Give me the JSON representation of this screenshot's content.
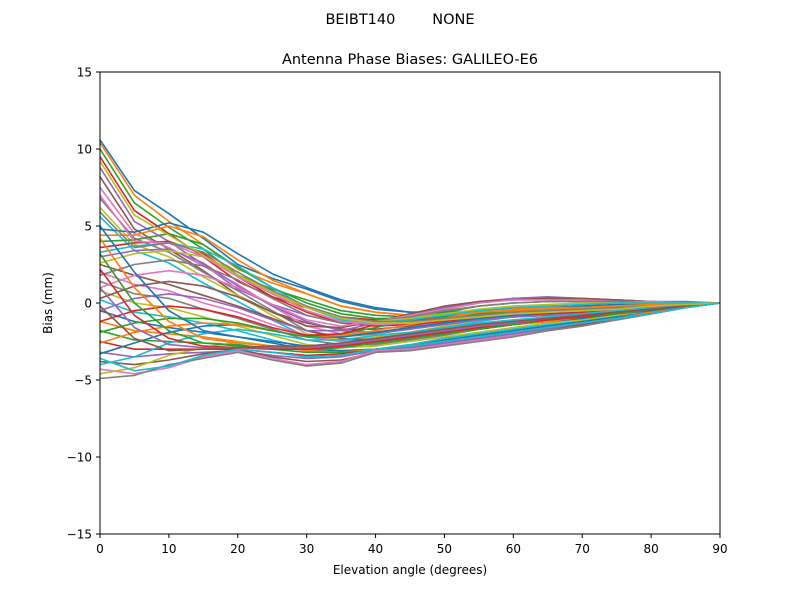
{
  "figure": {
    "suptitle": "BEIBT140        NONE"
  },
  "chart_data": {
    "type": "line",
    "title": "Antenna Phase Biases: GALILEO-E6",
    "xlabel": "Elevation angle (degrees)",
    "ylabel": "Bias (mm)",
    "xlim": [
      0,
      90
    ],
    "ylim": [
      -15,
      15
    ],
    "xticks": [
      "0",
      "10",
      "20",
      "30",
      "40",
      "50",
      "60",
      "70",
      "80",
      "90"
    ],
    "yticks": [
      "15",
      "10",
      "5",
      "0",
      "−5",
      "−10",
      "−15"
    ],
    "grid": false,
    "legend": "none",
    "x": [
      0,
      5,
      10,
      15,
      20,
      25,
      30,
      35,
      40,
      45,
      50,
      55,
      60,
      65,
      70,
      75,
      80,
      85,
      90
    ],
    "colors": [
      "#1f77b4",
      "#ff7f0e",
      "#2ca02c",
      "#d62728",
      "#9467bd",
      "#8c564b",
      "#e377c2",
      "#7f7f7f",
      "#bcbd22",
      "#17becf"
    ],
    "series": [
      {
        "values": [
          10.6,
          7.3,
          5.8,
          4.2,
          2.5,
          1.6,
          0.9,
          0.1,
          -0.4,
          -0.6,
          -0.6,
          -0.5,
          -0.4,
          -0.3,
          -0.2,
          -0.1,
          0.0,
          0.0,
          0.0
        ]
      },
      {
        "values": [
          10.4,
          7.0,
          5.3,
          3.8,
          2.2,
          1.3,
          0.6,
          -0.2,
          -0.6,
          -0.8,
          -0.8,
          -0.6,
          -0.5,
          -0.4,
          -0.3,
          -0.2,
          -0.1,
          0.0,
          0.0
        ]
      },
      {
        "values": [
          10.0,
          6.5,
          4.9,
          3.5,
          1.8,
          0.9,
          0.2,
          -0.5,
          -0.8,
          -0.9,
          -0.9,
          -0.7,
          -0.6,
          -0.5,
          -0.4,
          -0.3,
          -0.2,
          -0.1,
          0.0
        ]
      },
      {
        "values": [
          9.5,
          6.0,
          4.5,
          3.0,
          1.4,
          0.4,
          -0.3,
          -0.9,
          -1.1,
          -1.1,
          -1.0,
          -0.8,
          -0.7,
          -0.6,
          -0.5,
          -0.4,
          -0.3,
          -0.1,
          0.0
        ]
      },
      {
        "values": [
          8.8,
          5.3,
          4.0,
          2.5,
          0.9,
          -0.1,
          -0.8,
          -1.3,
          -1.4,
          -1.3,
          -1.1,
          -0.9,
          -0.8,
          -0.7,
          -0.6,
          -0.5,
          -0.3,
          -0.2,
          0.0
        ]
      },
      {
        "values": [
          8.2,
          4.8,
          3.5,
          2.1,
          0.5,
          -0.6,
          -1.3,
          -1.7,
          -1.7,
          -1.5,
          -1.2,
          -1.0,
          -0.9,
          -0.8,
          -0.7,
          -0.5,
          -0.4,
          -0.2,
          0.0
        ]
      },
      {
        "values": [
          7.5,
          4.5,
          3.6,
          2.4,
          1.2,
          -0.2,
          -1.5,
          -2.0,
          -1.9,
          -1.6,
          -1.2,
          -0.9,
          -0.7,
          -0.6,
          -0.5,
          -0.4,
          -0.3,
          -0.1,
          0.0
        ]
      },
      {
        "values": [
          6.8,
          4.2,
          3.3,
          2.0,
          0.8,
          -0.5,
          -1.8,
          -2.2,
          -2.0,
          -1.7,
          -1.3,
          -0.9,
          -0.7,
          -0.6,
          -0.5,
          -0.4,
          -0.3,
          -0.1,
          0.0
        ]
      },
      {
        "values": [
          6.2,
          3.8,
          3.0,
          1.7,
          0.5,
          -0.8,
          -2.0,
          -2.4,
          -2.2,
          -1.9,
          -1.5,
          -1.1,
          -0.8,
          -0.7,
          -0.6,
          -0.4,
          -0.3,
          -0.1,
          0.0
        ]
      },
      {
        "values": [
          5.6,
          3.4,
          2.6,
          1.3,
          0.1,
          -1.1,
          -2.2,
          -2.5,
          -2.3,
          -2.0,
          -1.6,
          -1.2,
          -0.9,
          -0.8,
          -0.7,
          -0.5,
          -0.3,
          -0.1,
          0.0
        ]
      },
      {
        "values": [
          4.8,
          4.6,
          5.2,
          4.6,
          3.2,
          1.9,
          1.0,
          0.2,
          -0.3,
          -0.6,
          -0.6,
          -0.5,
          -0.4,
          -0.3,
          -0.2,
          -0.1,
          0.0,
          0.0,
          0.0
        ]
      },
      {
        "values": [
          4.4,
          4.4,
          5.0,
          4.3,
          2.8,
          1.5,
          0.6,
          -0.2,
          -0.6,
          -0.8,
          -0.7,
          -0.6,
          -0.5,
          -0.4,
          -0.3,
          -0.2,
          -0.1,
          0.0,
          0.0
        ]
      },
      {
        "values": [
          4.0,
          4.1,
          4.5,
          3.8,
          2.3,
          1.0,
          0.0,
          -0.7,
          -1.0,
          -1.0,
          -0.9,
          -0.7,
          -0.6,
          -0.5,
          -0.4,
          -0.3,
          -0.2,
          -0.1,
          0.0
        ]
      },
      {
        "values": [
          3.6,
          3.9,
          4.0,
          3.2,
          1.7,
          0.4,
          -0.6,
          -1.3,
          -1.5,
          -1.4,
          -1.2,
          -0.9,
          -0.8,
          -0.7,
          -0.6,
          -0.4,
          -0.3,
          -0.2,
          0.0
        ]
      },
      {
        "values": [
          3.0,
          3.4,
          3.5,
          2.6,
          1.1,
          -0.2,
          -1.2,
          -1.8,
          -1.9,
          -1.7,
          -1.4,
          -1.1,
          -0.9,
          -0.8,
          -0.7,
          -0.5,
          -0.4,
          -0.2,
          0.0
        ]
      },
      {
        "values": [
          2.5,
          1.8,
          1.2,
          0.5,
          -0.2,
          -1.0,
          -1.8,
          -2.3,
          -2.4,
          -2.1,
          -1.8,
          -1.4,
          -1.2,
          -1.0,
          -0.8,
          -0.6,
          -0.4,
          -0.2,
          0.0
        ]
      },
      {
        "values": [
          2.0,
          1.2,
          0.8,
          0.0,
          -0.6,
          -1.4,
          -2.1,
          -2.5,
          -2.5,
          -2.3,
          -1.9,
          -1.6,
          -1.3,
          -1.1,
          -0.9,
          -0.7,
          -0.5,
          -0.2,
          0.0
        ]
      },
      {
        "values": [
          1.4,
          0.6,
          0.3,
          -0.4,
          -1.0,
          -1.7,
          -2.4,
          -2.7,
          -2.7,
          -2.4,
          -2.1,
          -1.7,
          -1.4,
          -1.2,
          -1.0,
          -0.7,
          -0.5,
          -0.3,
          0.0
        ]
      },
      {
        "values": [
          0.8,
          0.0,
          -0.3,
          -0.9,
          -1.5,
          -2.1,
          -2.7,
          -2.9,
          -2.8,
          -2.5,
          -2.2,
          -1.9,
          -1.6,
          -1.3,
          -1.1,
          -0.8,
          -0.5,
          -0.3,
          0.0
        ]
      },
      {
        "values": [
          0.2,
          -0.6,
          -0.9,
          -1.3,
          -1.8,
          -2.4,
          -2.9,
          -3.1,
          -3.0,
          -2.7,
          -2.3,
          -2.0,
          -1.7,
          -1.4,
          -1.2,
          -0.9,
          -0.6,
          -0.3,
          0.0
        ]
      },
      {
        "values": [
          -0.5,
          -1.2,
          -1.6,
          -1.9,
          -2.2,
          -2.6,
          -3.0,
          -3.1,
          -3.0,
          -2.8,
          -2.4,
          -2.1,
          -1.8,
          -1.5,
          -1.2,
          -0.9,
          -0.6,
          -0.3,
          0.0
        ]
      },
      {
        "values": [
          -1.2,
          -1.8,
          -2.0,
          -2.2,
          -2.5,
          -2.8,
          -3.1,
          -3.2,
          -3.0,
          -2.8,
          -2.5,
          -2.2,
          -1.9,
          -1.6,
          -1.3,
          -1.0,
          -0.6,
          -0.3,
          0.0
        ]
      },
      {
        "values": [
          -1.8,
          -2.4,
          -2.5,
          -2.6,
          -2.7,
          -3.0,
          -3.2,
          -3.2,
          -3.1,
          -2.9,
          -2.6,
          -2.3,
          -2.0,
          -1.7,
          -1.4,
          -1.0,
          -0.7,
          -0.3,
          0.0
        ]
      },
      {
        "values": [
          -2.5,
          -3.0,
          -3.0,
          -3.0,
          -3.0,
          -3.2,
          -3.4,
          -3.3,
          -3.1,
          -2.9,
          -2.6,
          -2.3,
          -2.0,
          -1.7,
          -1.4,
          -1.0,
          -0.7,
          -0.3,
          0.0
        ]
      },
      {
        "values": [
          -3.2,
          -3.5,
          -3.3,
          -3.2,
          -3.1,
          -3.4,
          -3.6,
          -3.5,
          -3.1,
          -2.9,
          -2.6,
          -2.3,
          -2.0,
          -1.7,
          -1.4,
          -1.0,
          -0.7,
          -0.3,
          0.0
        ]
      },
      {
        "values": [
          -3.8,
          -4.0,
          -3.7,
          -3.3,
          -3.0,
          -3.5,
          -3.8,
          -3.7,
          -3.2,
          -3.0,
          -2.7,
          -2.4,
          -2.1,
          -1.8,
          -1.4,
          -1.1,
          -0.7,
          -0.3,
          0.0
        ]
      },
      {
        "values": [
          -4.3,
          -4.6,
          -4.2,
          -3.5,
          -3.1,
          -3.6,
          -4.0,
          -3.8,
          -3.1,
          -3.0,
          -2.7,
          -2.4,
          -2.1,
          -1.8,
          -1.5,
          -1.1,
          -0.7,
          -0.3,
          0.0
        ]
      },
      {
        "values": [
          -4.9,
          -4.7,
          -4.0,
          -3.6,
          -3.2,
          -3.7,
          -4.1,
          -3.9,
          -3.2,
          -3.1,
          -2.8,
          -2.5,
          -2.2,
          -1.8,
          -1.5,
          -1.1,
          -0.7,
          -0.3,
          0.0
        ]
      },
      {
        "values": [
          -4.6,
          -4.2,
          -3.4,
          -2.9,
          -2.5,
          -2.8,
          -3.0,
          -2.9,
          -2.6,
          -2.3,
          -2.0,
          -1.7,
          -1.4,
          -1.2,
          -1.0,
          -0.7,
          -0.5,
          -0.2,
          0.0
        ]
      },
      {
        "values": [
          -4.0,
          -3.5,
          -2.6,
          -2.0,
          -1.7,
          -2.0,
          -2.4,
          -2.4,
          -2.1,
          -1.9,
          -1.6,
          -1.3,
          -1.1,
          -0.9,
          -0.7,
          -0.5,
          -0.3,
          -0.1,
          0.0
        ]
      },
      {
        "values": [
          -3.3,
          -2.6,
          -1.9,
          -1.5,
          -1.4,
          -1.8,
          -2.2,
          -2.2,
          -1.9,
          -1.6,
          -1.3,
          -1.0,
          -0.8,
          -0.6,
          -0.5,
          -0.4,
          -0.2,
          -0.1,
          0.0
        ]
      },
      {
        "values": [
          -2.6,
          -1.9,
          -1.5,
          -1.3,
          -1.4,
          -1.8,
          -2.2,
          -2.1,
          -1.8,
          -1.4,
          -1.0,
          -0.6,
          -0.4,
          -0.3,
          -0.3,
          -0.2,
          -0.1,
          -0.1,
          0.0
        ]
      },
      {
        "values": [
          -1.9,
          -1.3,
          -1.0,
          -1.0,
          -1.3,
          -1.8,
          -2.2,
          -2.0,
          -1.6,
          -1.1,
          -0.6,
          -0.2,
          0.0,
          0.1,
          0.1,
          0.1,
          0.1,
          0.0,
          0.0
        ]
      },
      {
        "values": [
          -1.2,
          -0.5,
          -0.2,
          -0.4,
          -0.9,
          -1.6,
          -2.1,
          -2.0,
          -1.4,
          -0.9,
          -0.4,
          0.0,
          0.3,
          0.3,
          0.2,
          0.2,
          0.1,
          0.0,
          0.0
        ]
      },
      {
        "values": [
          -0.5,
          0.3,
          0.6,
          0.3,
          -0.3,
          -1.1,
          -1.8,
          -1.8,
          -1.3,
          -0.8,
          -0.3,
          0.1,
          0.3,
          0.4,
          0.3,
          0.2,
          0.1,
          0.1,
          0.0
        ]
      },
      {
        "values": [
          0.3,
          1.1,
          1.4,
          1.1,
          0.4,
          -0.6,
          -1.5,
          -1.6,
          -1.2,
          -0.7,
          -0.2,
          0.1,
          0.2,
          0.3,
          0.3,
          0.2,
          0.1,
          0.0,
          0.0
        ]
      },
      {
        "values": [
          1.0,
          1.8,
          2.1,
          1.8,
          1.0,
          -0.1,
          -1.1,
          -1.5,
          -1.2,
          -0.8,
          -0.4,
          0.0,
          0.2,
          0.2,
          0.2,
          0.1,
          0.1,
          0.0,
          0.0
        ]
      },
      {
        "values": [
          1.8,
          2.5,
          2.8,
          2.4,
          1.5,
          0.3,
          -0.8,
          -1.3,
          -1.2,
          -0.9,
          -0.5,
          -0.2,
          0.0,
          0.1,
          0.1,
          0.1,
          0.0,
          0.0,
          0.0
        ]
      },
      {
        "values": [
          2.6,
          3.2,
          3.4,
          3.0,
          2.0,
          0.7,
          -0.5,
          -1.2,
          -1.2,
          -1.0,
          -0.7,
          -0.4,
          -0.2,
          -0.1,
          0.0,
          0.0,
          0.0,
          0.0,
          0.0
        ]
      },
      {
        "values": [
          3.3,
          3.7,
          3.9,
          3.5,
          2.4,
          1.0,
          -0.3,
          -1.1,
          -1.3,
          -1.1,
          -0.8,
          -0.5,
          -0.3,
          -0.2,
          -0.1,
          0.0,
          0.0,
          0.0,
          0.0
        ]
      },
      {
        "values": [
          5.0,
          2.0,
          -0.5,
          -1.8,
          -2.2,
          -2.5,
          -2.8,
          -2.8,
          -2.6,
          -2.3,
          -2.0,
          -1.7,
          -1.4,
          -1.2,
          -1.0,
          -0.7,
          -0.5,
          -0.2,
          0.0
        ]
      },
      {
        "values": [
          4.2,
          1.0,
          -1.2,
          -2.3,
          -2.6,
          -2.8,
          -3.0,
          -2.9,
          -2.6,
          -2.3,
          -2.0,
          -1.7,
          -1.4,
          -1.2,
          -0.9,
          -0.7,
          -0.4,
          -0.2,
          0.0
        ]
      },
      {
        "values": [
          3.2,
          0.0,
          -1.8,
          -2.6,
          -2.8,
          -2.9,
          -3.0,
          -2.9,
          -2.6,
          -2.3,
          -2.0,
          -1.7,
          -1.4,
          -1.1,
          -0.9,
          -0.7,
          -0.4,
          -0.2,
          0.0
        ]
      },
      {
        "values": [
          2.2,
          -0.8,
          -2.3,
          -2.8,
          -2.9,
          -3.0,
          -3.0,
          -2.8,
          -2.5,
          -2.2,
          -1.9,
          -1.6,
          -1.3,
          -1.1,
          -0.9,
          -0.6,
          -0.4,
          -0.2,
          0.0
        ]
      },
      {
        "values": [
          1.0,
          -1.6,
          -2.7,
          -2.9,
          -2.9,
          -2.9,
          -2.9,
          -2.7,
          -2.4,
          -2.1,
          -1.8,
          -1.5,
          -1.3,
          -1.0,
          -0.8,
          -0.6,
          -0.4,
          -0.2,
          0.0
        ]
      },
      {
        "values": [
          -0.2,
          -2.3,
          -3.1,
          -3.0,
          -2.9,
          -2.8,
          -2.8,
          -2.6,
          -2.3,
          -2.0,
          -1.7,
          -1.4,
          -1.2,
          -1.0,
          -0.8,
          -0.6,
          -0.4,
          -0.2,
          0.0
        ]
      },
      {
        "values": [
          7.0,
          4.0,
          3.9,
          3.0,
          1.7,
          0.6,
          -0.5,
          -1.2,
          -1.4,
          -1.3,
          -1.1,
          -0.9,
          -0.7,
          -0.6,
          -0.5,
          -0.4,
          -0.2,
          -0.1,
          0.0
        ]
      },
      {
        "values": [
          5.9,
          3.6,
          3.9,
          3.3,
          2.0,
          0.8,
          -0.2,
          -0.9,
          -1.2,
          -1.2,
          -1.0,
          -0.8,
          -0.6,
          -0.5,
          -0.4,
          -0.3,
          -0.2,
          -0.1,
          0.0
        ]
      },
      {
        "values": [
          9.2,
          5.7,
          4.4,
          3.1,
          1.8,
          0.7,
          -0.3,
          -1.0,
          -1.3,
          -1.3,
          -1.1,
          -0.9,
          -0.7,
          -0.6,
          -0.5,
          -0.4,
          -0.2,
          -0.1,
          0.0
        ]
      },
      {
        "values": [
          -3.6,
          -4.4,
          -4.1,
          -3.4,
          -3.0,
          -3.2,
          -3.5,
          -3.4,
          -3.0,
          -2.8,
          -2.5,
          -2.2,
          -1.9,
          -1.6,
          -1.3,
          -1.0,
          -0.7,
          -0.3,
          0.0
        ]
      }
    ]
  }
}
